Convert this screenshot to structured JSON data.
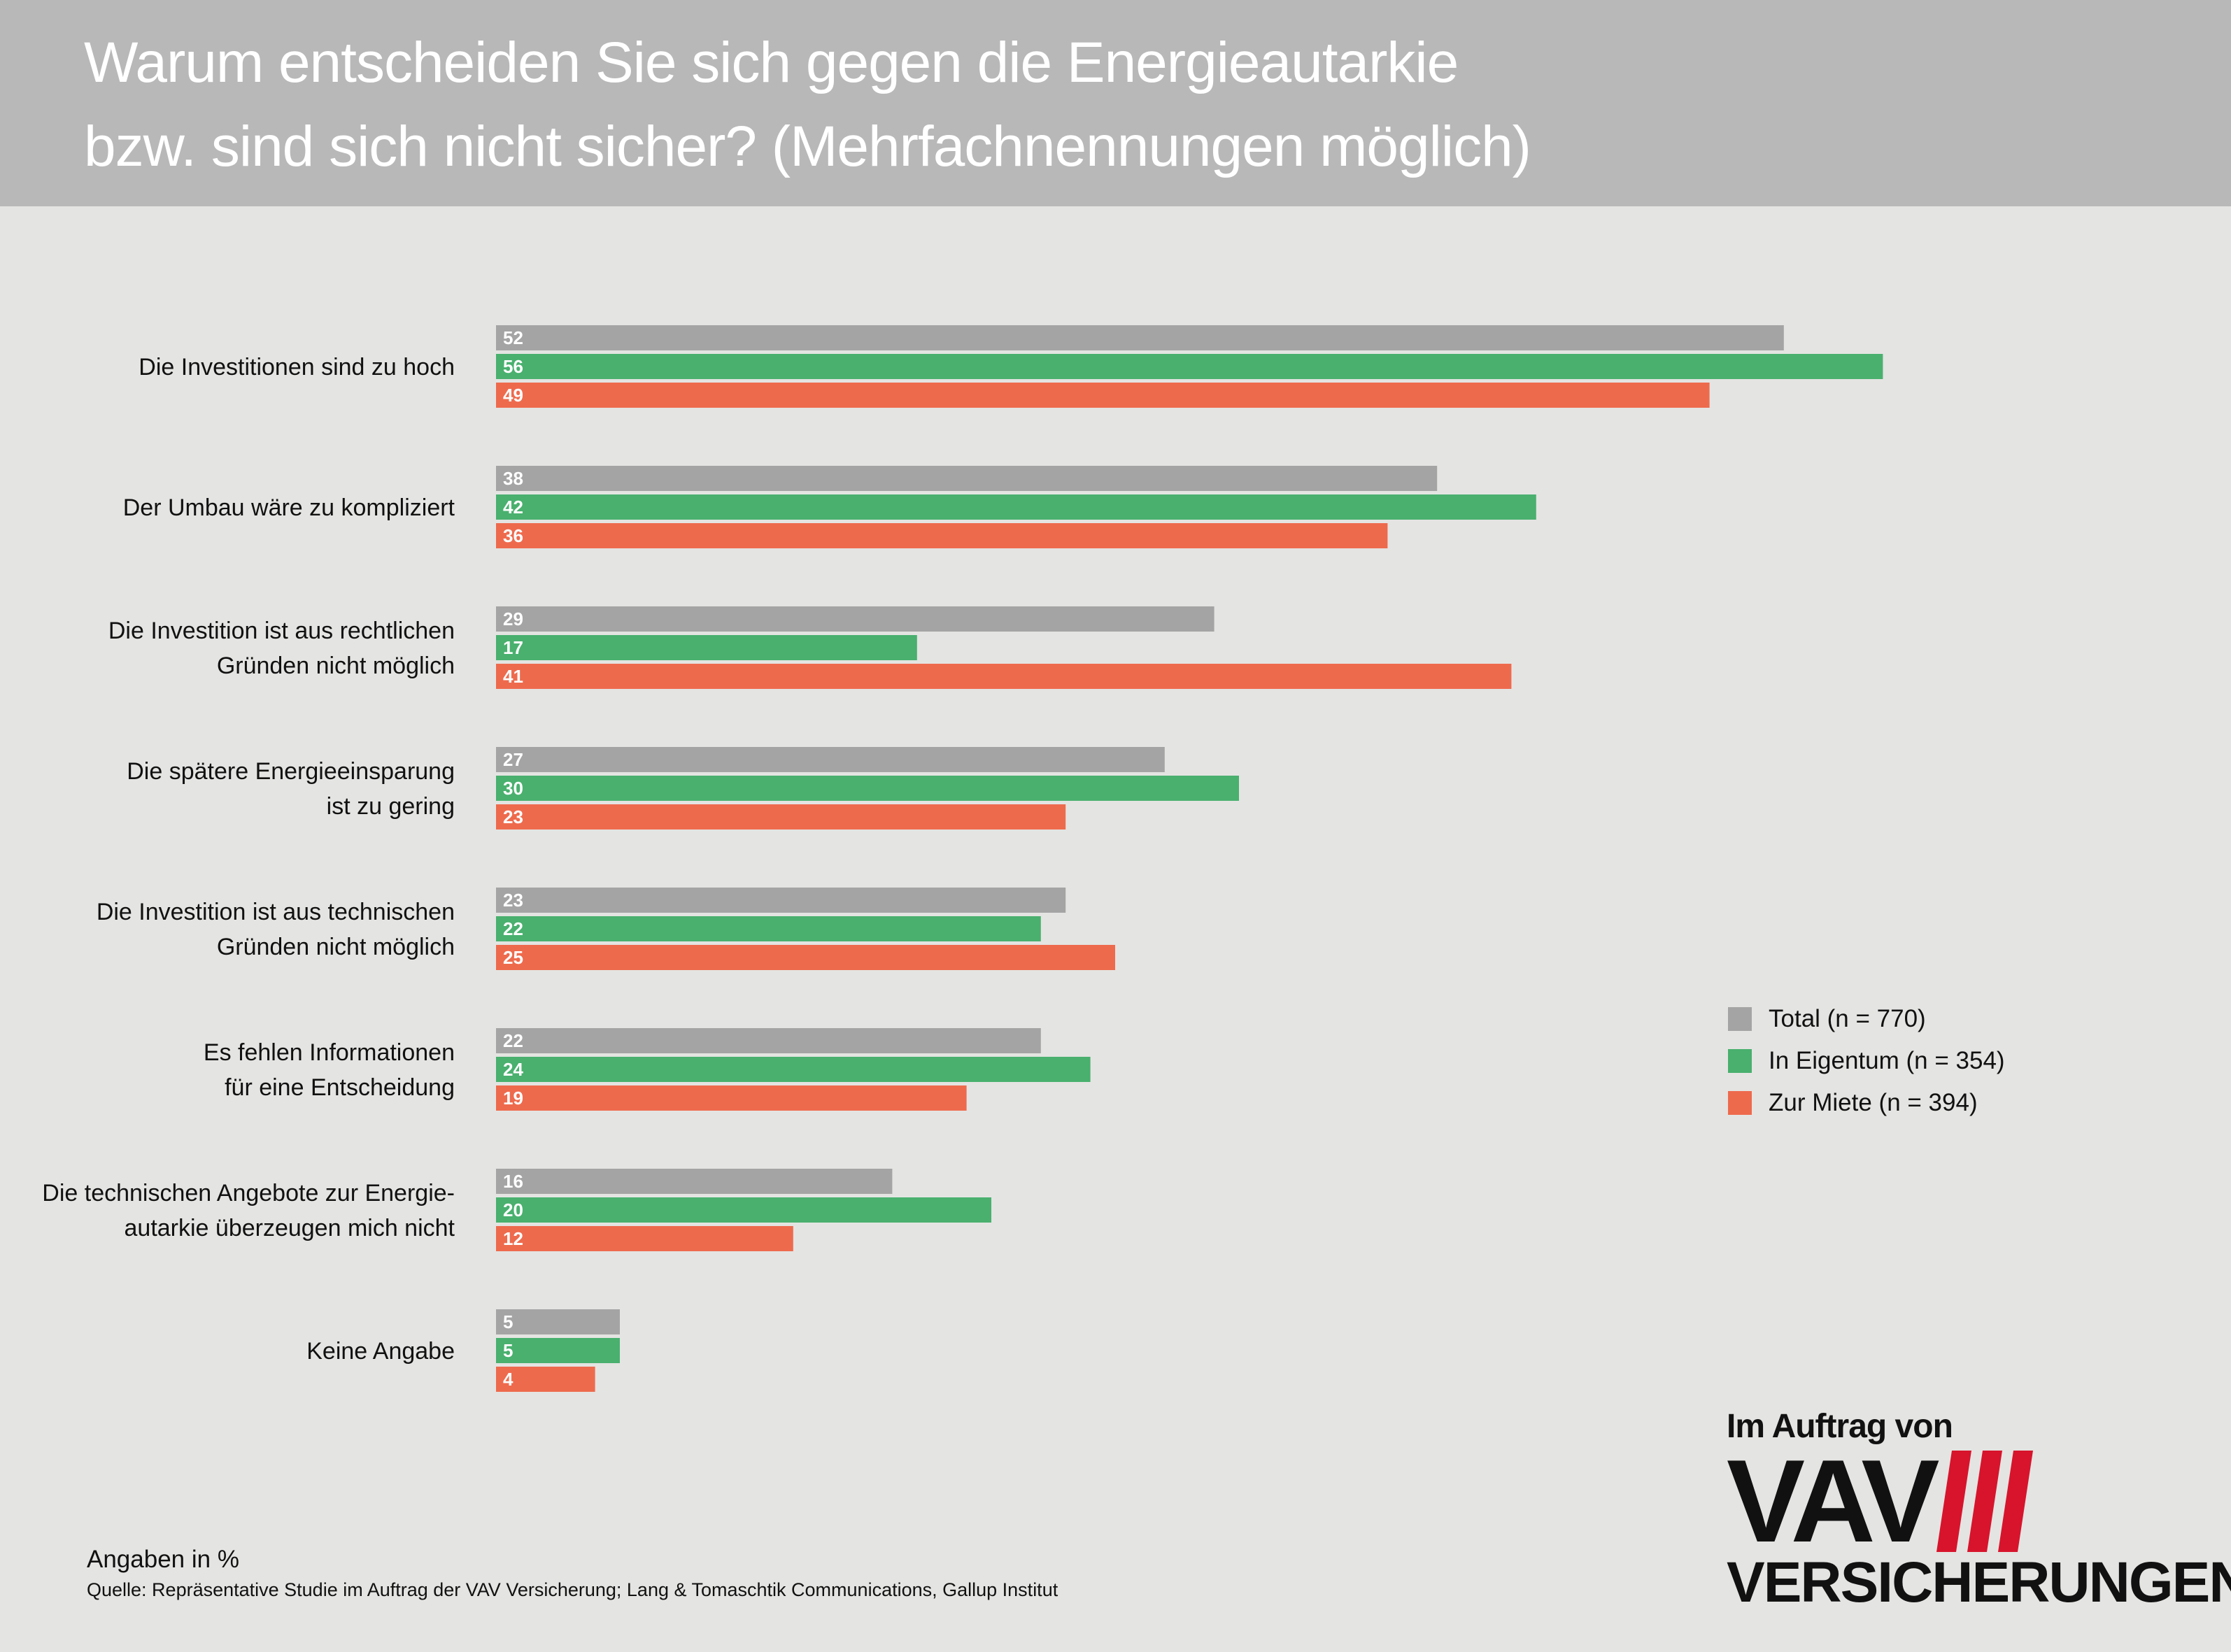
{
  "header": {
    "title_line1": "Warum entscheiden Sie sich gegen die Energieautarkie",
    "title_line2": "bzw. sind sich nicht sicher? (Mehrfachnennungen möglich)"
  },
  "chart_data": {
    "type": "bar",
    "orientation": "horizontal",
    "categories": [
      [
        "Die Investitionen sind zu hoch"
      ],
      [
        "Der Umbau wäre zu kompliziert"
      ],
      [
        "Die Investition ist aus rechtlichen",
        "Gründen nicht möglich"
      ],
      [
        "Die spätere Energieeinsparung",
        "ist zu gering"
      ],
      [
        "Die Investition ist aus technischen",
        "Gründen nicht möglich"
      ],
      [
        "Es fehlen Informationen",
        "für eine Entscheidung"
      ],
      [
        "Die technischen Angebote zur Energie-",
        "autarkie überzeugen mich nicht"
      ],
      [
        "Keine Angabe"
      ]
    ],
    "series": [
      {
        "name": "Total (n = 770)",
        "color": "#a4a4a4",
        "values": [
          52,
          38,
          29,
          27,
          23,
          22,
          16,
          5
        ]
      },
      {
        "name": "In Eigentum (n = 354)",
        "color": "#49b06e",
        "values": [
          56,
          42,
          17,
          30,
          22,
          24,
          20,
          5
        ]
      },
      {
        "name": "Zur Miete (n = 394)",
        "color": "#ee6a4d",
        "values": [
          49,
          36,
          41,
          23,
          25,
          19,
          12,
          4
        ]
      }
    ],
    "xlim": [
      0,
      60
    ],
    "grid": false,
    "legend_position": "right",
    "data_labels": "inside-bar-start"
  },
  "legend": {
    "items": [
      {
        "label": "Total (n = 770)",
        "color": "#a4a4a4"
      },
      {
        "label": "In Eigentum (n = 354)",
        "color": "#49b06e"
      },
      {
        "label": "Zur Miete (n = 394)",
        "color": "#ee6a4d"
      }
    ]
  },
  "footer": {
    "note": "Angaben in %",
    "source": "Quelle: Repräsentative Studie im Auftrag der VAV Versicherung; Lang & Tomaschtik Communications, Gallup Institut"
  },
  "logo": {
    "tagline": "Im Auftrag von",
    "mark": "VAV",
    "subtitle": "VERSICHERUNGEN",
    "stripe_color": "#d7142c"
  }
}
